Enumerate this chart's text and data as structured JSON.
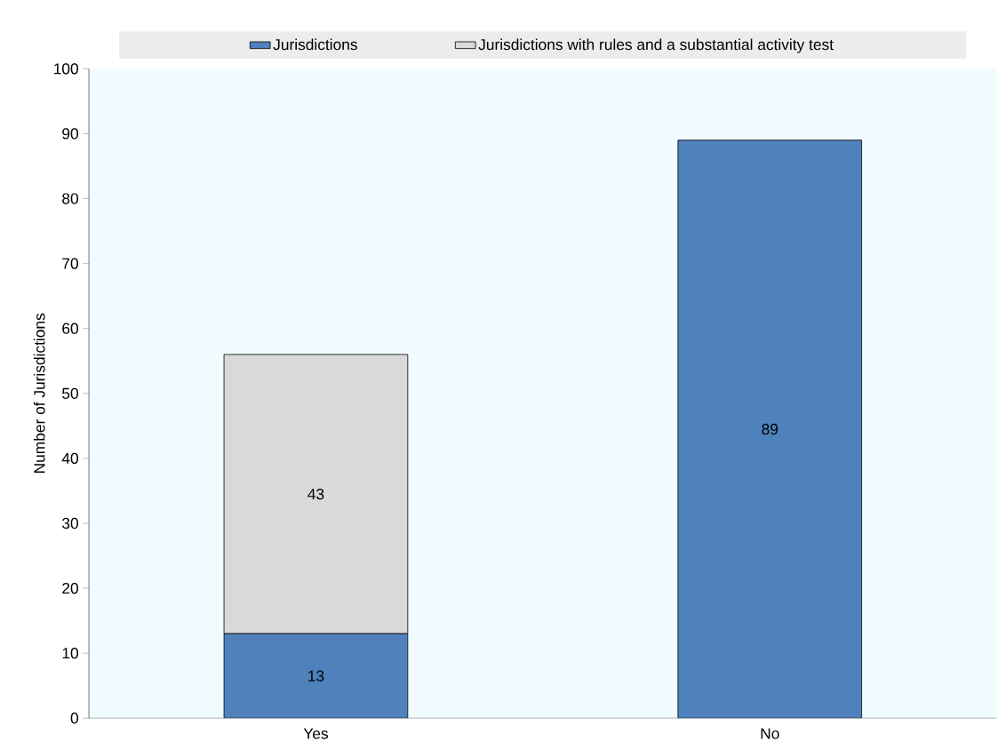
{
  "chart_data": {
    "type": "bar",
    "stacked": true,
    "ylabel": "Number of Jurisdictions",
    "categories": [
      "Yes",
      "No"
    ],
    "series": [
      {
        "name": "Jurisdictions",
        "color": "#4f81bd",
        "values": [
          13,
          89
        ]
      },
      {
        "name": "Jurisdictions with rules and a substantial activity test",
        "color": "#d9d9d9",
        "values": [
          43,
          null
        ]
      }
    ],
    "ylim": [
      0,
      100
    ],
    "yticks": [
      0,
      10,
      20,
      30,
      40,
      50,
      60,
      70,
      80,
      90,
      100
    ],
    "data_labels": true,
    "legend": "top",
    "grid": false
  }
}
